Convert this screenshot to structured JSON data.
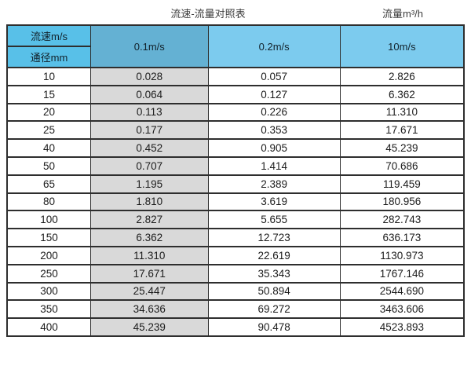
{
  "titles": {
    "left": "流速-流量对照表",
    "right": "流量m³/h"
  },
  "table": {
    "corner": {
      "top": "流速m/s",
      "bottom": "通径mm"
    },
    "columns": [
      "0.1m/s",
      "0.2m/s",
      "10m/s"
    ],
    "rows": [
      {
        "diameter": "10",
        "values": [
          "0.028",
          "0.057",
          "2.826"
        ]
      },
      {
        "diameter": "15",
        "values": [
          "0.064",
          "0.127",
          "6.362"
        ]
      },
      {
        "diameter": "20",
        "values": [
          "0.113",
          "0.226",
          "11.310"
        ]
      },
      {
        "diameter": "25",
        "values": [
          "0.177",
          "0.353",
          "17.671"
        ]
      },
      {
        "diameter": "40",
        "values": [
          "0.452",
          "0.905",
          "45.239"
        ]
      },
      {
        "diameter": "50",
        "values": [
          "0.707",
          "1.414",
          "70.686"
        ]
      },
      {
        "diameter": "65",
        "values": [
          "1.195",
          "2.389",
          "119.459"
        ]
      },
      {
        "diameter": "80",
        "values": [
          "1.810",
          "3.619",
          "180.956"
        ]
      },
      {
        "diameter": "100",
        "values": [
          "2.827",
          "5.655",
          "282.743"
        ]
      },
      {
        "diameter": "150",
        "values": [
          "6.362",
          "12.723",
          "636.173"
        ]
      },
      {
        "diameter": "200",
        "values": [
          "11.310",
          "22.619",
          "1130.973"
        ]
      },
      {
        "diameter": "250",
        "values": [
          "17.671",
          "35.343",
          "1767.146"
        ]
      },
      {
        "diameter": "300",
        "values": [
          "25.447",
          "50.894",
          "2544.690"
        ]
      },
      {
        "diameter": "350",
        "values": [
          "34.636",
          "69.272",
          "3463.606"
        ]
      },
      {
        "diameter": "400",
        "values": [
          "45.239",
          "90.478",
          "4523.893"
        ]
      }
    ]
  },
  "colors": {
    "corner_header": "#58c0e8",
    "velocity_01_header": "#64b1d3",
    "velocity_other_headers": "#7ccbee",
    "gray_data_column": "#d9d9d9",
    "border": "#2e2e2e"
  },
  "chart_data": {
    "type": "table",
    "title": "流速-流量对照表",
    "subtitle": "流量m³/h",
    "row_header_label": "通径mm",
    "column_header_label": "流速m/s",
    "velocity_columns_m_per_s": [
      0.1,
      0.2,
      10
    ],
    "diameter_mm": [
      10,
      15,
      20,
      25,
      40,
      50,
      65,
      80,
      100,
      150,
      200,
      250,
      300,
      350,
      400
    ],
    "flow_m3_per_h": [
      [
        0.028,
        0.057,
        2.826
      ],
      [
        0.064,
        0.127,
        6.362
      ],
      [
        0.113,
        0.226,
        11.31
      ],
      [
        0.177,
        0.353,
        17.671
      ],
      [
        0.452,
        0.905,
        45.239
      ],
      [
        0.707,
        1.414,
        70.686
      ],
      [
        1.195,
        2.389,
        119.459
      ],
      [
        1.81,
        3.619,
        180.956
      ],
      [
        2.827,
        5.655,
        282.743
      ],
      [
        6.362,
        12.723,
        636.173
      ],
      [
        11.31,
        22.619,
        1130.973
      ],
      [
        17.671,
        35.343,
        1767.146
      ],
      [
        25.447,
        50.894,
        2544.69
      ],
      [
        34.636,
        69.272,
        3463.606
      ],
      [
        45.239,
        90.478,
        4523.893
      ]
    ]
  }
}
